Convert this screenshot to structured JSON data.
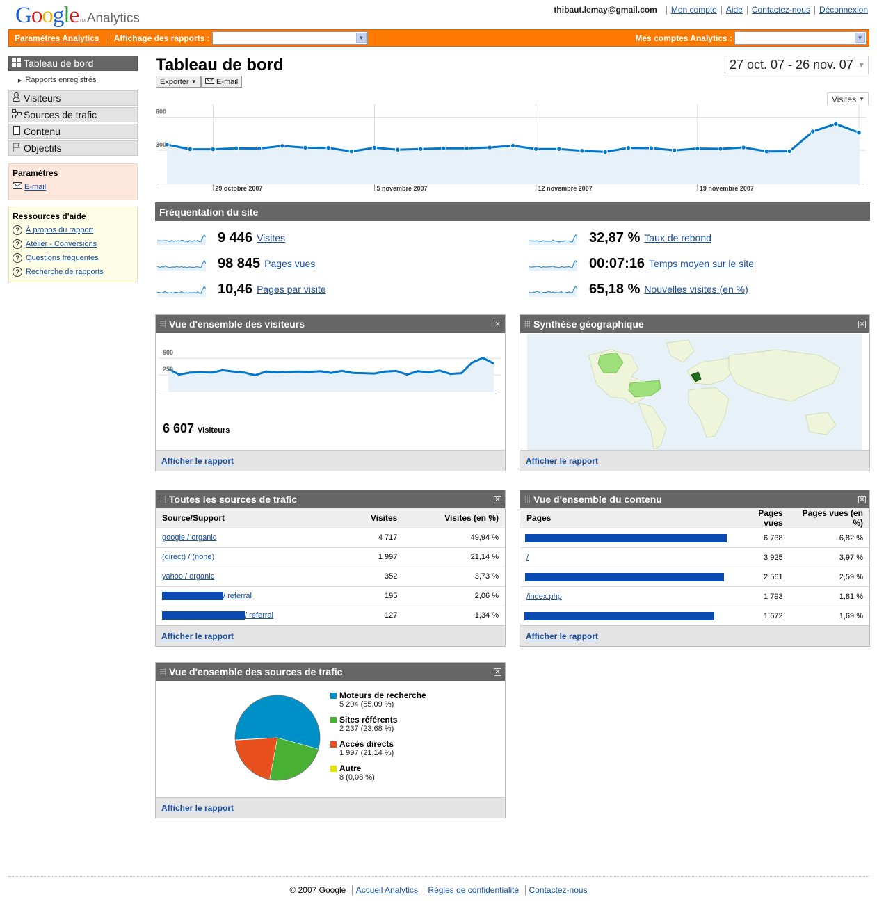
{
  "header": {
    "logo_google": "Google",
    "logo_tm": "TM",
    "logo_analytics": "Analytics",
    "user": "thibaut.lemay@gmail.com",
    "links": [
      "Mon compte",
      "Aide",
      "Contactez-nous",
      "Déconnexion"
    ]
  },
  "orange_bar": {
    "settings": "Paramètres Analytics",
    "reports_label": "Affichage des rapports :",
    "reports_value": "",
    "accounts_label": "Mes comptes Analytics :",
    "accounts_value": ""
  },
  "nav": {
    "dashboard": "Tableau de bord",
    "saved_reports": "Rapports enregistrés",
    "items": [
      "Visiteurs",
      "Sources de trafic",
      "Contenu",
      "Objectifs"
    ],
    "settings_title": "Paramètres",
    "settings_email": "E-mail",
    "help_title": "Ressources d'aide",
    "help_links": [
      "À propos du rapport",
      "Atelier - Conversions",
      "Questions fréquentes",
      "Recherche de rapports"
    ]
  },
  "page": {
    "title": "Tableau de bord",
    "export_button": "Exporter",
    "email_button": "E-mail",
    "date_range": "27 oct. 07 - 26 nov. 07",
    "metric_selector": "Visites"
  },
  "main_chart": {
    "type": "line",
    "y_ticks": [
      "600",
      "300"
    ],
    "x_labels": [
      "29 octobre 2007",
      "5 novembre 2007",
      "12 novembre 2007",
      "19 novembre 2007"
    ],
    "ylim": [
      0,
      690
    ],
    "values": [
      352,
      310,
      310,
      318,
      316,
      340,
      324,
      322,
      290,
      324,
      306,
      312,
      318,
      318,
      326,
      342,
      312,
      312,
      296,
      286,
      322,
      320,
      300,
      316,
      314,
      326,
      290,
      292,
      470,
      538,
      460
    ],
    "color": "#0077cc"
  },
  "usage": {
    "title": "Fréquentation du site",
    "metrics": [
      {
        "value": "9 446",
        "label": "Visites"
      },
      {
        "value": "98 845",
        "label": "Pages vues"
      },
      {
        "value": "10,46",
        "label": "Pages par visite"
      },
      {
        "value": "32,87 %",
        "label": "Taux de rebond"
      },
      {
        "value": "00:07:16",
        "label": "Temps moyen sur le site"
      },
      {
        "value": "65,18 %",
        "label": "Nouvelles visites (en %)"
      }
    ]
  },
  "visitors_panel": {
    "title": "Vue d'ensemble des visiteurs",
    "y_ticks": [
      "500",
      "250"
    ],
    "ylim": [
      0,
      700
    ],
    "values": [
      340,
      255,
      285,
      290,
      285,
      320,
      300,
      285,
      245,
      300,
      290,
      295,
      300,
      295,
      305,
      280,
      310,
      280,
      275,
      270,
      300,
      310,
      255,
      305,
      290,
      315,
      265,
      275,
      435,
      505,
      420
    ],
    "total_value": "6 607",
    "total_label": "Visiteurs",
    "link": "Afficher le rapport"
  },
  "geo_panel": {
    "title": "Synthèse géographique",
    "link": "Afficher le rapport"
  },
  "traffic_panel": {
    "title": "Toutes les sources de trafic",
    "columns": [
      "Source/Support",
      "Visites",
      "Visites (en %)"
    ],
    "rows": [
      {
        "source": "google / organic",
        "visits": "4 717",
        "pct": "49,94 %"
      },
      {
        "source": "(direct) / (none)",
        "visits": "1 997",
        "pct": "21,14 %"
      },
      {
        "source": "yahoo / organic",
        "visits": "352",
        "pct": "3,73 %"
      },
      {
        "source": "/ referral",
        "visits": "195",
        "pct": "2,06 %"
      },
      {
        "source": "/ referral",
        "visits": "127",
        "pct": "1,34 %"
      }
    ],
    "link": "Afficher le rapport"
  },
  "content_panel": {
    "title": "Vue d'ensemble du contenu",
    "columns": [
      "Pages",
      "Pages vues",
      "Pages vues (en %)"
    ],
    "rows": [
      {
        "page": "",
        "views": "6 738",
        "pct": "6,82 %"
      },
      {
        "page": "/",
        "views": "3 925",
        "pct": "3,97 %"
      },
      {
        "page": "",
        "views": "2 561",
        "pct": "2,59 %"
      },
      {
        "page": "/index.php",
        "views": "1 793",
        "pct": "1,81 %"
      },
      {
        "page": "",
        "views": "1 672",
        "pct": "1,69 %"
      }
    ],
    "link": "Afficher le rapport"
  },
  "sources_panel": {
    "title": "Vue d'ensemble des sources de trafic",
    "chart_data": {
      "type": "pie",
      "slices": [
        {
          "name": "Moteurs de recherche",
          "value": 5204,
          "label": "5 204 (55,09 %)",
          "color": "#0090c8"
        },
        {
          "name": "Sites référents",
          "value": 2237,
          "label": "2 237 (23,68 %)",
          "color": "#48b032"
        },
        {
          "name": "Accès directs",
          "value": 1997,
          "label": "1 997 (21,14 %)",
          "color": "#e8501e"
        },
        {
          "name": "Autre",
          "value": 8,
          "label": "8 (0,08 %)",
          "color": "#e8e000"
        }
      ]
    },
    "link": "Afficher le rapport"
  },
  "footer": {
    "copyright": "© 2007 Google",
    "links": [
      "Accueil Analytics",
      "Règles de confidentialité",
      "Contactez-nous"
    ]
  }
}
